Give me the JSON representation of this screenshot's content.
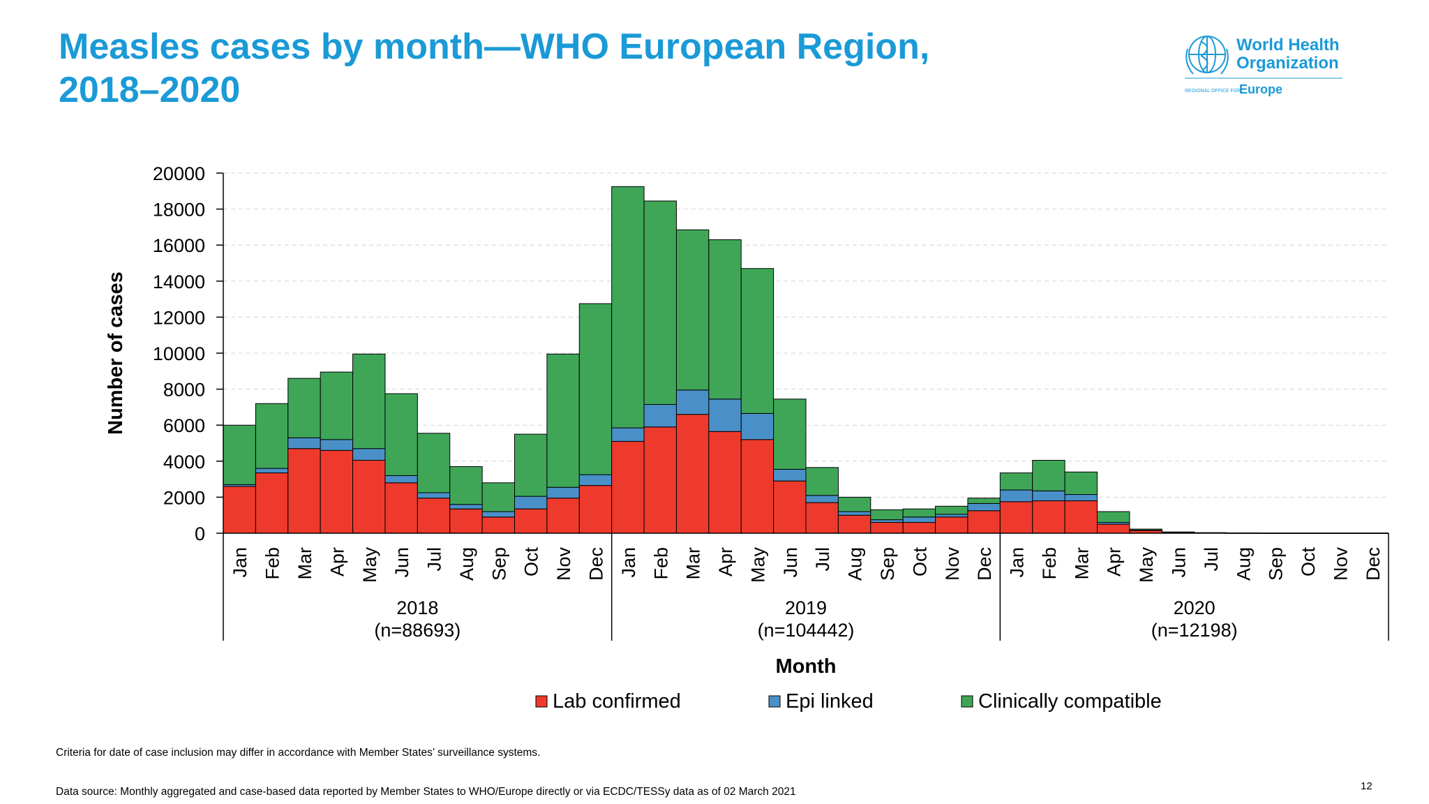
{
  "title_lines": [
    "Measles cases by month—WHO European Region,",
    "2018–2020"
  ],
  "logo": {
    "line1": "World Health",
    "line2": "Organization",
    "regional_small": "REGIONAL OFFICE FOR",
    "regional_big": "Europe",
    "icon": "who-emblem-icon",
    "color": "#1a9ad6"
  },
  "chart_data": {
    "type": "bar",
    "stacked": true,
    "ylabel": "Number of cases",
    "xlabel": "Month",
    "ylim": [
      0,
      20000
    ],
    "yticks": [
      0,
      2000,
      4000,
      6000,
      8000,
      10000,
      12000,
      14000,
      16000,
      18000,
      20000
    ],
    "grid": "horizontal-dashed",
    "legend_position": "bottom",
    "months": [
      "Jan",
      "Feb",
      "Mar",
      "Apr",
      "May",
      "Jun",
      "Jul",
      "Aug",
      "Sep",
      "Oct",
      "Nov",
      "Dec"
    ],
    "groups": [
      {
        "year": "2018",
        "n_label": "(n=88693)"
      },
      {
        "year": "2019",
        "n_label": "(n=104442)"
      },
      {
        "year": "2020",
        "n_label": "(n=12198)"
      }
    ],
    "series": [
      {
        "name": "Lab confirmed",
        "color": "#ee3a2c",
        "values": [
          2600,
          3350,
          4700,
          4600,
          4050,
          2800,
          1950,
          1350,
          900,
          1350,
          1950,
          2650,
          5100,
          5900,
          6600,
          5650,
          5200,
          2900,
          1700,
          1000,
          600,
          600,
          900,
          1250,
          1750,
          1800,
          1800,
          500,
          150,
          50,
          20,
          10,
          5,
          5,
          5,
          5
        ]
      },
      {
        "name": "Epi linked",
        "color": "#4a90c8",
        "values": [
          100,
          250,
          600,
          600,
          650,
          400,
          300,
          250,
          300,
          700,
          600,
          600,
          750,
          1250,
          1350,
          1800,
          1450,
          650,
          400,
          200,
          150,
          300,
          150,
          400,
          650,
          550,
          350,
          100,
          20,
          10,
          5,
          5,
          0,
          0,
          0,
          0
        ]
      },
      {
        "name": "Clinically compatible",
        "color": "#3fa658",
        "values": [
          3300,
          3600,
          3300,
          3750,
          5250,
          4550,
          3300,
          2100,
          1600,
          3450,
          7400,
          9500,
          13400,
          11300,
          8900,
          8850,
          8050,
          3900,
          1550,
          800,
          550,
          450,
          450,
          300,
          950,
          1700,
          1250,
          600,
          60,
          10,
          5,
          5,
          5,
          5,
          5,
          5
        ]
      }
    ]
  },
  "footnotes": {
    "criteria": "Criteria for date of case inclusion may differ in accordance with Member States’ surveillance systems.",
    "source": "Data source: Monthly aggregated and case-based data reported by Member States to WHO/Europe directly or via ECDC/TESSy data as of 02 March 2021"
  },
  "page_number": "12"
}
